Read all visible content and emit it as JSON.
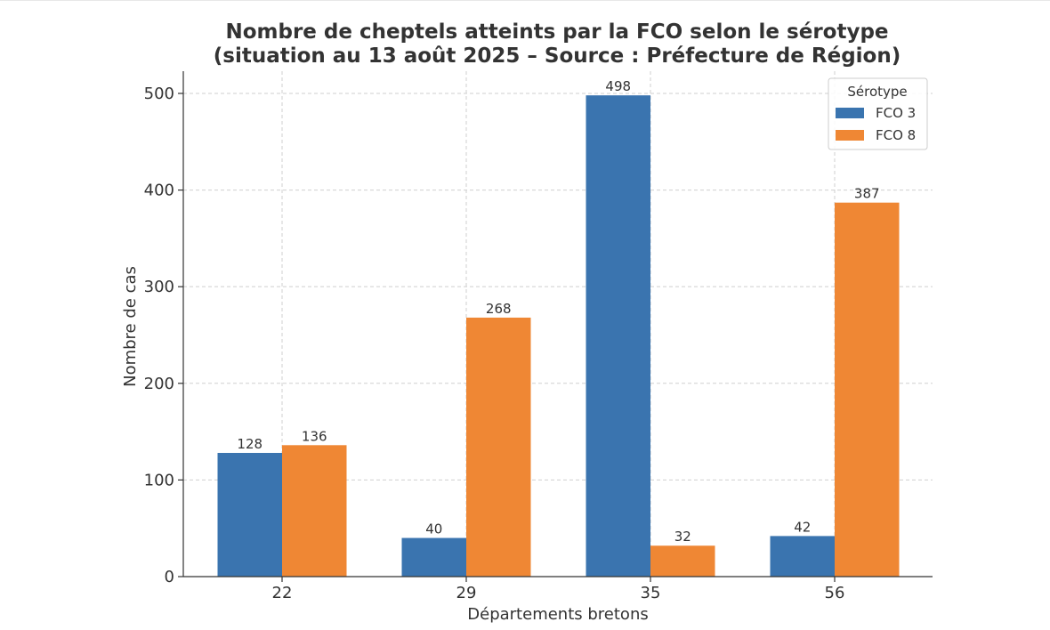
{
  "chart_data": {
    "type": "bar",
    "title_line1": "Nombre de cheptels atteints par la FCO selon le sérotype",
    "title_line2": "(situation au 13 août 2025 – Source : Préfecture de Région)",
    "xlabel": "Départements bretons",
    "ylabel": "Nombre de cas",
    "categories": [
      "22",
      "29",
      "35",
      "56"
    ],
    "series": [
      {
        "name": "FCO 3",
        "color": "#3a74af",
        "values": [
          128,
          40,
          498,
          42
        ]
      },
      {
        "name": "FCO 8",
        "color": "#ef8734",
        "values": [
          136,
          268,
          32,
          387
        ]
      }
    ],
    "ylim": [
      0,
      523
    ],
    "yticks": [
      0,
      100,
      200,
      300,
      400,
      500
    ],
    "grid": true,
    "legend": {
      "title": "Sérotype",
      "placement": "top-right"
    }
  }
}
